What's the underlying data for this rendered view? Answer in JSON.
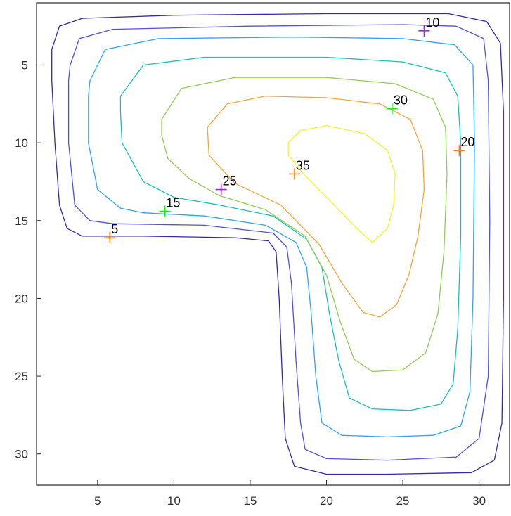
{
  "chart_data": {
    "type": "contour",
    "title": "",
    "xlabel": "",
    "ylabel": "",
    "xlim": [
      1,
      32
    ],
    "ylim": [
      1,
      32
    ],
    "y_direction": "reversed",
    "grid": false,
    "x_ticks": [
      5,
      10,
      15,
      20,
      25,
      30
    ],
    "y_ticks": [
      5,
      10,
      15,
      20,
      25,
      30
    ],
    "contour_levels": [
      {
        "level": 5,
        "color": "#3d26a8",
        "points": [
          [
            2,
            4
          ],
          [
            2.5,
            2.5
          ],
          [
            4,
            2
          ],
          [
            10,
            1.8
          ],
          [
            20,
            1.7
          ],
          [
            28,
            1.7
          ],
          [
            30.5,
            2.2
          ],
          [
            31.4,
            3.6
          ],
          [
            31.6,
            8
          ],
          [
            31.6,
            20
          ],
          [
            31.5,
            28
          ],
          [
            31,
            30.4
          ],
          [
            29.5,
            31.2
          ],
          [
            24,
            31.3
          ],
          [
            20,
            31.3
          ],
          [
            17.9,
            30.8
          ],
          [
            17.3,
            29
          ],
          [
            17.1,
            25
          ],
          [
            16.9,
            20
          ],
          [
            16.7,
            17
          ],
          [
            16.2,
            16.3
          ],
          [
            14,
            16.1
          ],
          [
            8,
            16
          ],
          [
            4,
            16
          ],
          [
            3,
            15.5
          ],
          [
            2.5,
            14
          ],
          [
            2.2,
            10
          ],
          [
            2,
            6
          ]
        ]
      },
      {
        "level": 10,
        "color": "#5252e0",
        "points": [
          [
            3.2,
            5
          ],
          [
            3.8,
            3.3
          ],
          [
            6,
            2.7
          ],
          [
            15,
            2.5
          ],
          [
            25,
            2.4
          ],
          [
            28.5,
            2.5
          ],
          [
            30.3,
            3.3
          ],
          [
            30.6,
            6
          ],
          [
            30.7,
            15
          ],
          [
            30.6,
            25
          ],
          [
            30,
            29
          ],
          [
            28.5,
            30.2
          ],
          [
            24,
            30.4
          ],
          [
            20,
            30.3
          ],
          [
            18.6,
            29.7
          ],
          [
            18.3,
            28
          ],
          [
            18,
            24
          ],
          [
            17.7,
            19
          ],
          [
            17.4,
            16.7
          ],
          [
            16.5,
            15.8
          ],
          [
            12,
            15.3
          ],
          [
            6,
            15.2
          ],
          [
            4.5,
            15
          ],
          [
            3.5,
            14
          ],
          [
            3.1,
            10
          ],
          [
            3.1,
            6
          ]
        ]
      },
      {
        "level": 15,
        "color": "#2fa2ff",
        "points": [
          [
            4.5,
            6
          ],
          [
            5.5,
            4
          ],
          [
            9,
            3.3
          ],
          [
            18,
            3.2
          ],
          [
            25,
            3.3
          ],
          [
            28.4,
            3.7
          ],
          [
            29.6,
            5
          ],
          [
            29.7,
            10
          ],
          [
            29.6,
            20
          ],
          [
            29.4,
            26
          ],
          [
            28.8,
            28.2
          ],
          [
            27,
            28.8
          ],
          [
            24,
            28.9
          ],
          [
            21,
            28.8
          ],
          [
            19.7,
            28
          ],
          [
            19.3,
            25
          ],
          [
            19,
            21
          ],
          [
            18.7,
            18
          ],
          [
            18,
            16.4
          ],
          [
            16,
            15.3
          ],
          [
            12,
            14.7
          ],
          [
            8,
            14.5
          ],
          [
            6.5,
            14.2
          ],
          [
            5,
            13
          ],
          [
            4.4,
            10
          ],
          [
            4.4,
            7
          ]
        ]
      },
      {
        "level": 20,
        "color": "#17bfc1",
        "points": [
          [
            6.5,
            7
          ],
          [
            8,
            5
          ],
          [
            12,
            4.5
          ],
          [
            20,
            4.5
          ],
          [
            25,
            4.8
          ],
          [
            27.8,
            5.5
          ],
          [
            28.6,
            7
          ],
          [
            28.8,
            10
          ],
          [
            28.8,
            16
          ],
          [
            28.6,
            22
          ],
          [
            28.3,
            25.5
          ],
          [
            27.5,
            26.8
          ],
          [
            25.5,
            27.2
          ],
          [
            23,
            27.1
          ],
          [
            21.5,
            26.4
          ],
          [
            20.8,
            24
          ],
          [
            20.2,
            21
          ],
          [
            19.7,
            18
          ],
          [
            18.7,
            16.2
          ],
          [
            16.5,
            14.7
          ],
          [
            13,
            14
          ],
          [
            10,
            13.5
          ],
          [
            8,
            12.5
          ],
          [
            6.6,
            10
          ],
          [
            6.5,
            8
          ]
        ]
      },
      {
        "level": 25,
        "color": "#91ce55",
        "points": [
          [
            9.2,
            8.5
          ],
          [
            10.5,
            6.5
          ],
          [
            14,
            5.8
          ],
          [
            20,
            5.8
          ],
          [
            24.5,
            6.2
          ],
          [
            27,
            7.2
          ],
          [
            27.8,
            9
          ],
          [
            27.9,
            12
          ],
          [
            27.7,
            17
          ],
          [
            27.3,
            21
          ],
          [
            26.5,
            23.5
          ],
          [
            25,
            24.6
          ],
          [
            23,
            24.7
          ],
          [
            21.8,
            23.9
          ],
          [
            20.9,
            21.5
          ],
          [
            20,
            18.5
          ],
          [
            18.6,
            16
          ],
          [
            16,
            14.3
          ],
          [
            13,
            13.4
          ],
          [
            11,
            12.3
          ],
          [
            9.6,
            11
          ],
          [
            9.2,
            9.5
          ]
        ]
      },
      {
        "level": 30,
        "color": "#f3a73b",
        "points": [
          [
            12.2,
            9
          ],
          [
            13.5,
            7.5
          ],
          [
            16,
            7
          ],
          [
            20,
            7.1
          ],
          [
            23.5,
            7.5
          ],
          [
            25.5,
            8.5
          ],
          [
            26.3,
            10.5
          ],
          [
            26.4,
            13
          ],
          [
            26,
            16
          ],
          [
            25.4,
            18.5
          ],
          [
            24.6,
            20.4
          ],
          [
            23.5,
            21.2
          ],
          [
            22.4,
            20.9
          ],
          [
            21,
            19
          ],
          [
            19.5,
            16.5
          ],
          [
            17,
            14
          ],
          [
            14,
            12.6
          ],
          [
            12.3,
            10.8
          ]
        ]
      },
      {
        "level": 35,
        "color": "#f4f426",
        "points": [
          [
            17.5,
            10
          ],
          [
            18.3,
            9.2
          ],
          [
            20,
            8.9
          ],
          [
            22.5,
            9.4
          ],
          [
            24,
            10.5
          ],
          [
            24.5,
            12
          ],
          [
            24.4,
            14
          ],
          [
            24,
            15.5
          ],
          [
            23,
            16.4
          ],
          [
            22.2,
            15.7
          ],
          [
            20.5,
            14
          ],
          [
            18.5,
            12
          ],
          [
            17.5,
            10.8
          ]
        ]
      }
    ],
    "labels": [
      {
        "text": "5",
        "x": 5.8,
        "y": 16.1,
        "marker_color": "#ff8000"
      },
      {
        "text": "10",
        "x": 26.4,
        "y": 2.8,
        "marker_color": "#a020f0"
      },
      {
        "text": "15",
        "x": 9.4,
        "y": 14.4,
        "marker_color": "#00ff00"
      },
      {
        "text": "20",
        "x": 28.7,
        "y": 10.5,
        "marker_color": "#ff8000"
      },
      {
        "text": "25",
        "x": 13.1,
        "y": 13.0,
        "marker_color": "#a020f0"
      },
      {
        "text": "30",
        "x": 24.3,
        "y": 7.8,
        "marker_color": "#00ff00"
      },
      {
        "text": "35",
        "x": 17.9,
        "y": 12.0,
        "marker_color": "#ff8000"
      }
    ]
  }
}
